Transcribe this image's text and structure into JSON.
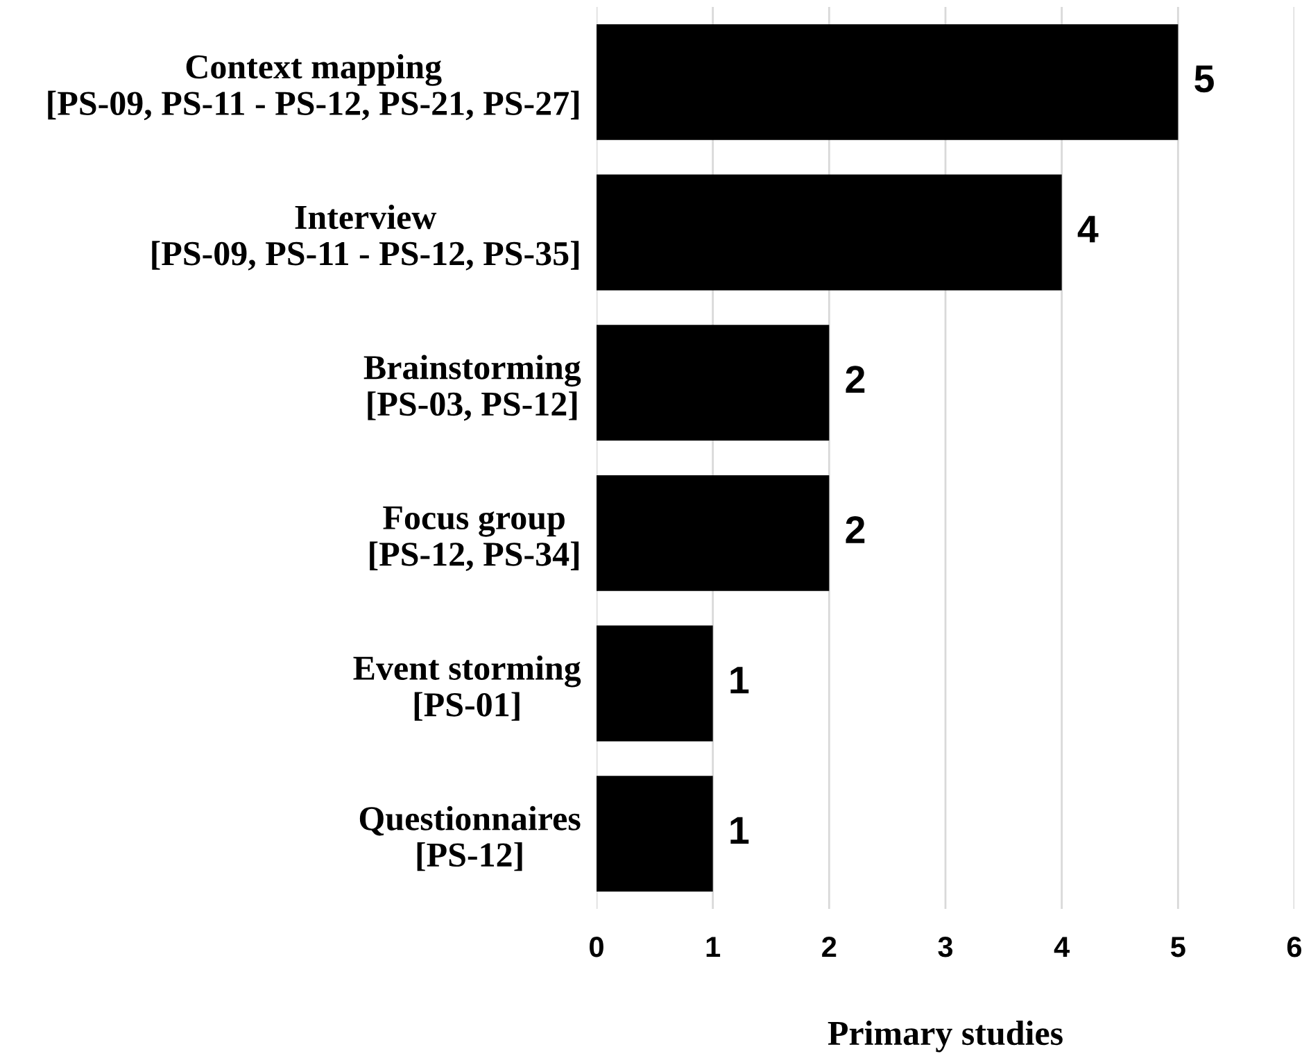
{
  "chart_data": {
    "type": "bar",
    "orientation": "horizontal",
    "categories": [
      "Context mapping\n[PS-09, PS-11 - PS-12, PS-21, PS-27]",
      "Interview\n[PS-09, PS-11 - PS-12, PS-35]",
      "Brainstorming\n[PS-03, PS-12]",
      "Focus group\n[PS-12, PS-34]",
      "Event storming\n[PS-01]",
      "Questionnaires\n[PS-12]"
    ],
    "values": [
      5,
      4,
      2,
      2,
      1,
      1
    ],
    "color": "#000000",
    "xlabel": "Primary studies",
    "xlim": [
      0,
      6
    ],
    "xticks": [
      0,
      1,
      2,
      3,
      4,
      5,
      6
    ],
    "grid": "x",
    "data_labels": true,
    "legend": false
  }
}
